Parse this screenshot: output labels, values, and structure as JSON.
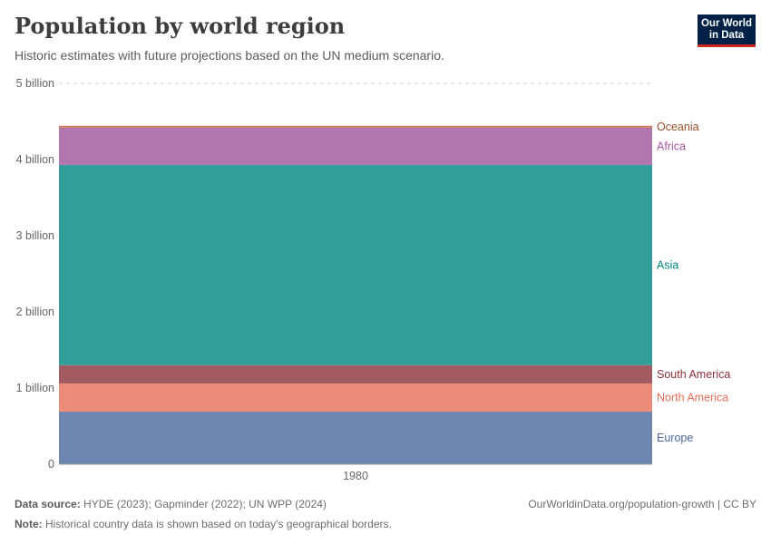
{
  "header": {
    "title": "Population by world region",
    "subtitle": "Historic estimates with future projections based on the UN medium scenario.",
    "logo_line1": "Our World",
    "logo_line2": "in Data"
  },
  "footer": {
    "source_label": "Data source:",
    "source_text": "HYDE (2023); Gapminder (2022); UN WPP (2024)",
    "note_label": "Note:",
    "note_text": "Historical country data is shown based on today's geographical borders.",
    "url_text": "OurWorldinData.org/population-growth | CC BY"
  },
  "chart_data": {
    "type": "area",
    "stacked": true,
    "categories": [
      "1980"
    ],
    "yticks": [
      {
        "value": 0,
        "label": "0"
      },
      {
        "value": 1,
        "label": "1 billion"
      },
      {
        "value": 2,
        "label": "2 billion"
      },
      {
        "value": 3,
        "label": "3 billion"
      },
      {
        "value": 4,
        "label": "4 billion"
      },
      {
        "value": 5,
        "label": "5 billion"
      }
    ],
    "ylim": [
      0,
      5
    ],
    "y_unit": "billion",
    "grid": true,
    "series": [
      {
        "name": "Europe",
        "value": 0.69,
        "color": "#6d87b0",
        "label_color": "#4c6a9c"
      },
      {
        "name": "North America",
        "value": 0.37,
        "color": "#ec8c7b",
        "label_color": "#e56e5a"
      },
      {
        "name": "South America",
        "value": 0.24,
        "color": "#a35b62",
        "label_color": "#883039"
      },
      {
        "name": "Asia",
        "value": 2.63,
        "color": "#339e98",
        "label_color": "#00847e"
      },
      {
        "name": "Africa",
        "value": 0.49,
        "color": "#b277b0",
        "label_color": "#a2559c"
      },
      {
        "name": "Oceania",
        "value": 0.023,
        "color": "#c97b51",
        "label_color": "#9a5129"
      }
    ]
  }
}
